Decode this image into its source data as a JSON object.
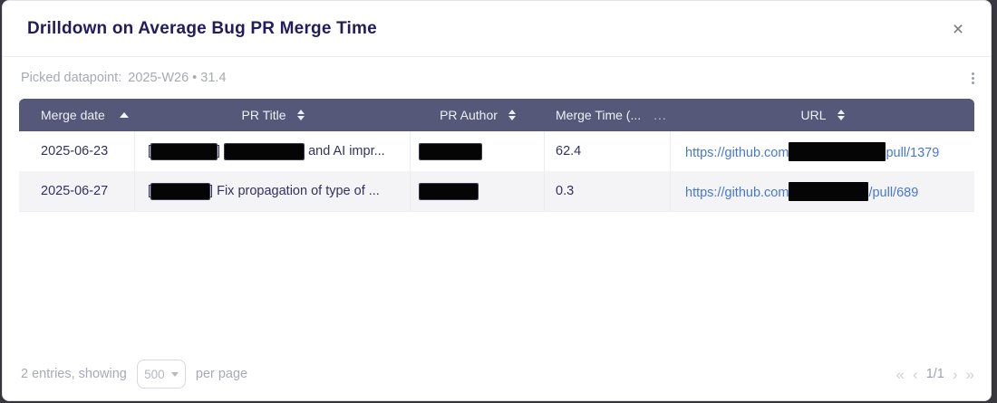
{
  "modal": {
    "title": "Drilldown on Average Bug PR Merge Time",
    "close_glyph": "×"
  },
  "picked_datapoint": {
    "label": "Picked datapoint:",
    "value": "2025-W26 • 31.4"
  },
  "table": {
    "columns": [
      "Merge date",
      "PR Title",
      "PR Author",
      "Merge Time (...",
      "URL"
    ],
    "truncated_sort_hint": "...",
    "rows": [
      {
        "merge_date": "2025-06-23",
        "title_open": "[",
        "title_mid": "]",
        "title_tail": "and AI impr...",
        "author_redacted": "",
        "merge_time": "62.4",
        "url_prefix": "https://github.com",
        "url_suffix": "pull/1379"
      },
      {
        "merge_date": "2025-06-27",
        "title_open": "[",
        "title_tail": "] Fix propagation of type of ...",
        "author_redacted": "",
        "merge_time": "0.3",
        "url_prefix": "https://github.com",
        "url_suffix": "/pull/689"
      }
    ]
  },
  "footer": {
    "entries_text": "2 entries, showing",
    "page_size": "500",
    "per_page_text": "per page",
    "pagination": {
      "first": "«",
      "prev": "‹",
      "current": "1/1",
      "next": "›",
      "last": "»"
    }
  },
  "colors": {
    "table_header_bg": "#565879",
    "title_navy": "#201d5c",
    "link_blue": "#4678d2",
    "muted_gray": "#a6aab3",
    "stripe_gray": "#f4f4f7"
  }
}
